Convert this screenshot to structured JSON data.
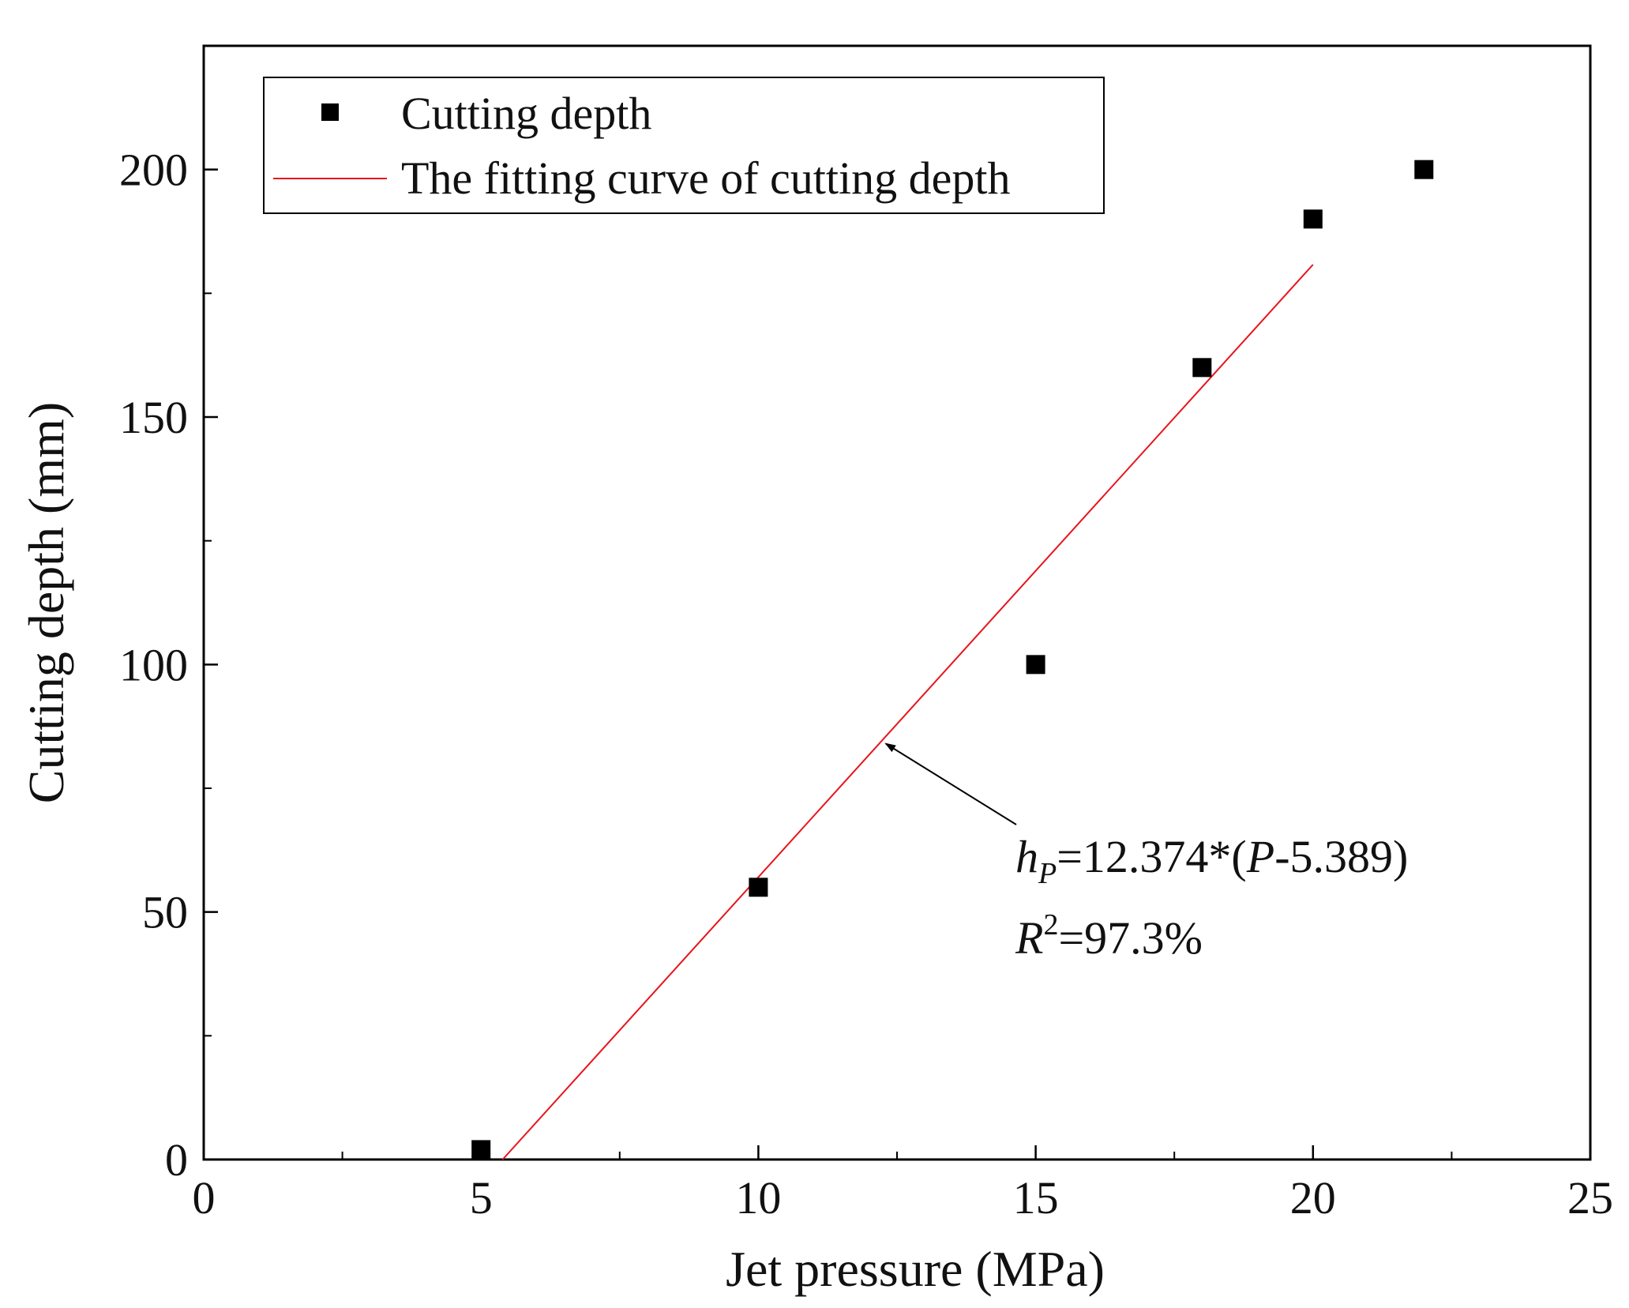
{
  "chart_data": {
    "type": "scatter",
    "title": "",
    "xlabel": "Jet pressure (MPa)",
    "ylabel": "Cutting depth (mm)",
    "xlim": [
      0,
      25
    ],
    "ylim": [
      0,
      225
    ],
    "xticks": [
      0,
      5,
      10,
      15,
      20,
      25
    ],
    "yticks": [
      0,
      50,
      100,
      150,
      200
    ],
    "xtick_labels": [
      "0",
      "5",
      "10",
      "15",
      "20",
      "25"
    ],
    "ytick_labels": [
      "0",
      "50",
      "100",
      "150",
      "200"
    ],
    "grid": false,
    "legend_position": "top-left",
    "series": [
      {
        "name": "Cutting depth",
        "kind": "scatter",
        "marker": "square",
        "color": "#000000",
        "x": [
          5,
          10,
          15,
          18,
          20,
          22
        ],
        "y": [
          2,
          55,
          100,
          160,
          190,
          200
        ]
      },
      {
        "name": "The fitting curve of cutting depth",
        "kind": "line",
        "color": "#e8141c",
        "x": [
          5.389,
          20
        ],
        "y": [
          0,
          180.8
        ]
      }
    ],
    "annotation": {
      "equation": {
        "h": "h",
        "sub": "P",
        "eq_part1": "=12.374*(",
        "var": "P",
        "eq_part2": "-5.389)"
      },
      "r2": {
        "R": "R",
        "sup": "2",
        "rest": "=97.3%"
      },
      "arrow_target": {
        "x": 12.3,
        "y": 84
      }
    }
  }
}
